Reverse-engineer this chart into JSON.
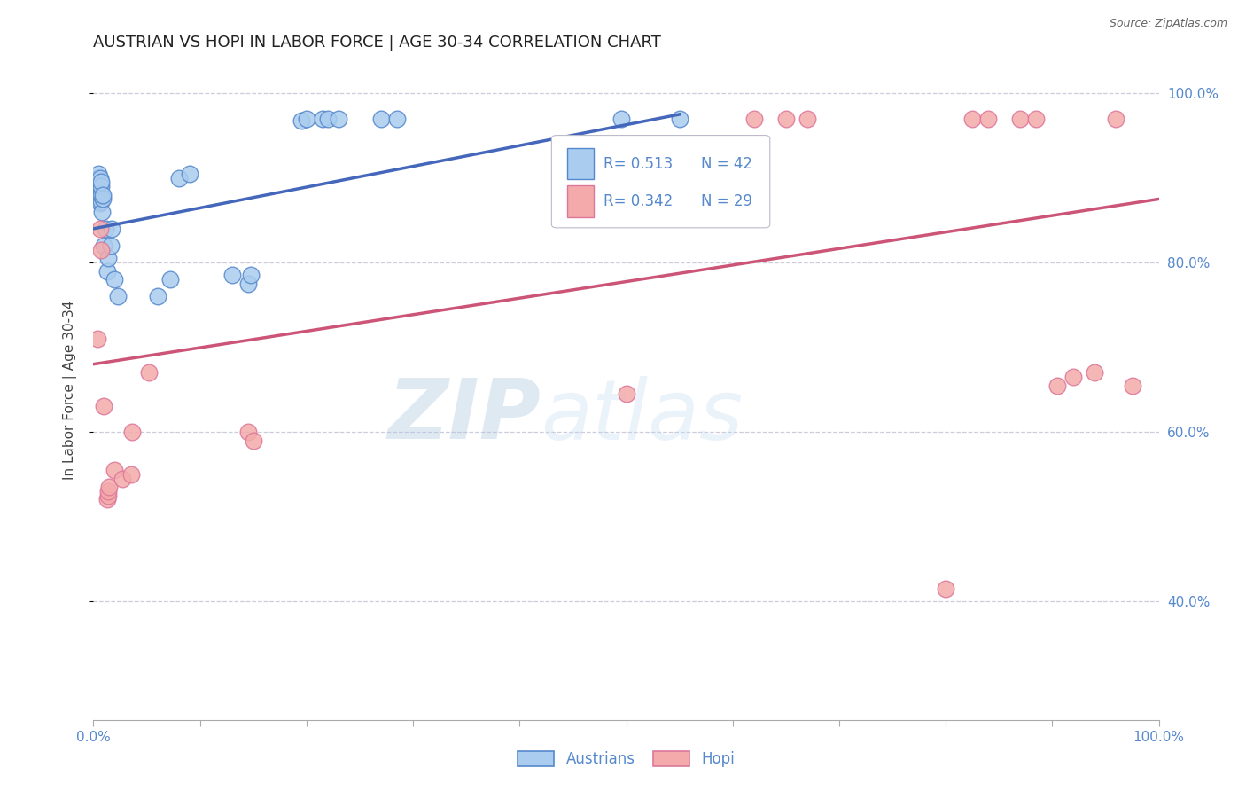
{
  "title": "AUSTRIAN VS HOPI IN LABOR FORCE | AGE 30-34 CORRELATION CHART",
  "source": "Source: ZipAtlas.com",
  "ylabel": "In Labor Force | Age 30-34",
  "watermark_zip": "ZIP",
  "watermark_atlas": "atlas",
  "xlim": [
    0.0,
    1.0
  ],
  "ylim": [
    0.26,
    1.04
  ],
  "yticks": [
    0.4,
    0.6,
    0.8,
    1.0
  ],
  "ytick_labels": [
    "40.0%",
    "60.0%",
    "80.0%",
    "100.0%"
  ],
  "xticks": [
    0.0,
    0.1,
    0.2,
    0.3,
    0.4,
    0.5,
    0.6,
    0.7,
    0.8,
    0.9,
    1.0
  ],
  "xtick_labels_show": {
    "0": "0.0%",
    "10": "100.0%"
  },
  "legend_r_austrians": "R= 0.513",
  "legend_n_austrians": "N = 42",
  "legend_r_hopi": "R= 0.342",
  "legend_n_hopi": "N = 29",
  "legend_label_austrians": "Austrians",
  "legend_label_hopi": "Hopi",
  "austrian_fill": "#AACCEE",
  "hopi_fill": "#F4AAAA",
  "austrian_edge": "#5588CC",
  "hopi_edge": "#DD7799",
  "line_austrian": "#4466BB",
  "line_hopi": "#CC5577",
  "bg": "#FFFFFF",
  "grid_color": "#CCCCDD",
  "tick_color": "#5588CC",
  "title_color": "#222222",
  "austrians_x": [
    0.003,
    0.004,
    0.004,
    0.004,
    0.005,
    0.005,
    0.005,
    0.006,
    0.006,
    0.006,
    0.006,
    0.007,
    0.007,
    0.007,
    0.007,
    0.008,
    0.009,
    0.009,
    0.01,
    0.011,
    0.013,
    0.014,
    0.016,
    0.017,
    0.02,
    0.023,
    0.06,
    0.072,
    0.08,
    0.09,
    0.13,
    0.145,
    0.148,
    0.195,
    0.2,
    0.215,
    0.22,
    0.23,
    0.27,
    0.285,
    0.495,
    0.55
  ],
  "austrians_y": [
    0.88,
    0.89,
    0.895,
    0.9,
    0.875,
    0.885,
    0.905,
    0.87,
    0.878,
    0.89,
    0.9,
    0.872,
    0.88,
    0.89,
    0.895,
    0.86,
    0.875,
    0.88,
    0.82,
    0.84,
    0.79,
    0.805,
    0.82,
    0.84,
    0.78,
    0.76,
    0.76,
    0.78,
    0.9,
    0.905,
    0.785,
    0.775,
    0.785,
    0.968,
    0.97,
    0.97,
    0.97,
    0.97,
    0.97,
    0.97,
    0.97,
    0.97
  ],
  "hopi_x": [
    0.004,
    0.006,
    0.007,
    0.01,
    0.013,
    0.014,
    0.014,
    0.015,
    0.02,
    0.027,
    0.035,
    0.036,
    0.052,
    0.145,
    0.15,
    0.5,
    0.62,
    0.65,
    0.67,
    0.8,
    0.825,
    0.84,
    0.87,
    0.885,
    0.905,
    0.92,
    0.94,
    0.96,
    0.975
  ],
  "hopi_y": [
    0.71,
    0.84,
    0.815,
    0.63,
    0.52,
    0.525,
    0.53,
    0.535,
    0.555,
    0.545,
    0.55,
    0.6,
    0.67,
    0.6,
    0.59,
    0.645,
    0.97,
    0.97,
    0.97,
    0.415,
    0.97,
    0.97,
    0.97,
    0.97,
    0.655,
    0.665,
    0.67,
    0.97,
    0.655
  ],
  "austrian_line_x": [
    0.0,
    0.55
  ],
  "austrian_line_y": [
    0.84,
    0.975
  ],
  "hopi_line_x": [
    0.0,
    1.0
  ],
  "hopi_line_y": [
    0.68,
    0.875
  ]
}
